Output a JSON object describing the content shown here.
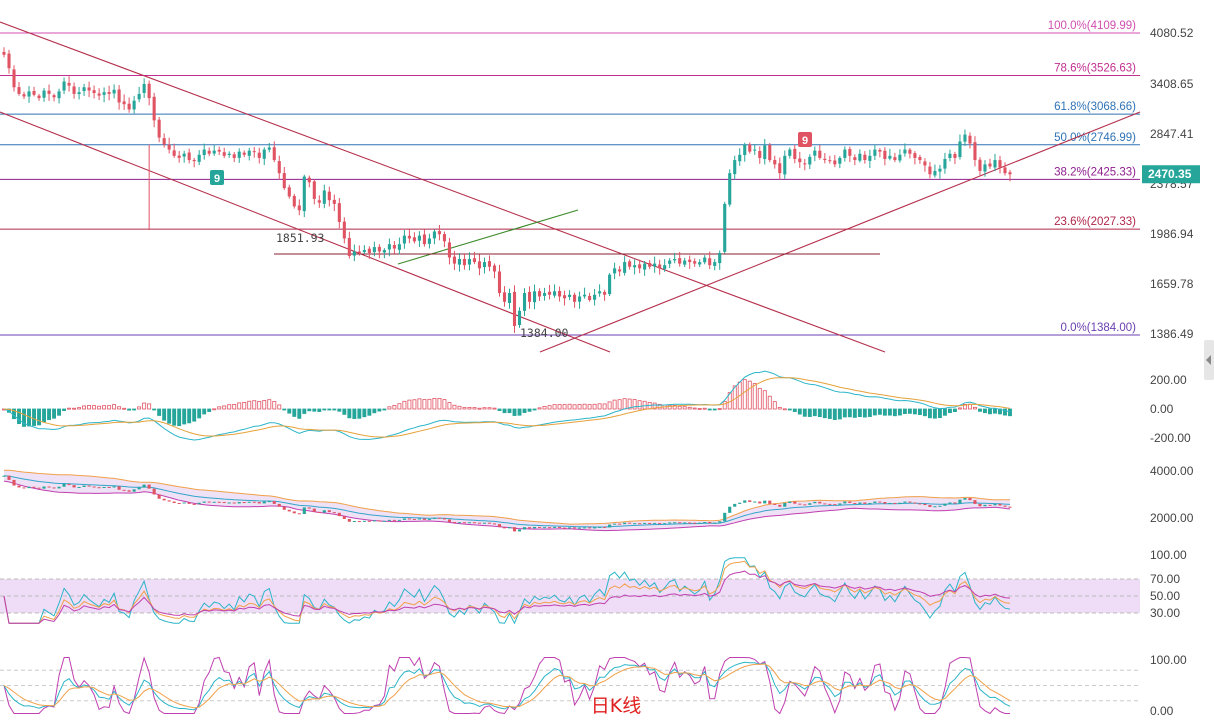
{
  "chart_data": {
    "type": "candlestick",
    "title": "日K线",
    "price_axis_ticks": [
      "4080.52",
      "3408.65",
      "2847.41",
      "2378.57",
      "1986.94",
      "1659.78",
      "1386.49"
    ],
    "current_price": "2470.35",
    "price_ylim_log": [
      1290,
      4600
    ],
    "fibonacci": [
      {
        "label": "100.0%(4109.99)",
        "price": 4109.99,
        "color": "#d04fb0"
      },
      {
        "label": "78.6%(3526.63)",
        "price": 3526.63,
        "color": "#c22f8f"
      },
      {
        "label": "61.8%(3068.66)",
        "price": 3068.66,
        "color": "#2f73b5"
      },
      {
        "label": "50.0%(2746.99)",
        "price": 2746.99,
        "color": "#2f73b5"
      },
      {
        "label": "38.2%(2425.33)",
        "price": 2425.33,
        "color": "#8f1f8f"
      },
      {
        "label": "23.6%(2027.33)",
        "price": 2027.33,
        "color": "#b0274a"
      },
      {
        "label": "0.0%(1384.00)",
        "price": 1384.0,
        "color": "#6a3fb0"
      }
    ],
    "annotations": [
      {
        "text": "1851.93",
        "price": 1851.93
      },
      {
        "text": "1384.00",
        "price": 1384.0
      }
    ],
    "td_markers": [
      {
        "text": "9",
        "color": "#26a69a"
      },
      {
        "text": "9",
        "color": "#e05363"
      }
    ],
    "panels": [
      {
        "name": "macd",
        "ticks": [
          "200.00",
          "0.00",
          "-200.00"
        ]
      },
      {
        "name": "boll",
        "ticks": [
          "4000.00",
          "2000.00"
        ]
      },
      {
        "name": "rsi",
        "ticks": [
          "100.00",
          "70.00",
          "50.00",
          "30.00"
        ]
      },
      {
        "name": "kdj",
        "ticks": [
          "100.00",
          "0.00"
        ]
      }
    ],
    "closes": [
      3800,
      3620,
      3380,
      3300,
      3270,
      3330,
      3290,
      3250,
      3340,
      3300,
      3260,
      3330,
      3450,
      3400,
      3300,
      3320,
      3380,
      3340,
      3310,
      3280,
      3320,
      3300,
      3350,
      3200,
      3180,
      3120,
      3220,
      3300,
      3420,
      3250,
      3000,
      2820,
      2750,
      2700,
      2640,
      2620,
      2660,
      2600,
      2590,
      2650,
      2700,
      2660,
      2690,
      2680,
      2640,
      2660,
      2620,
      2680,
      2650,
      2690,
      2680,
      2620,
      2700,
      2720,
      2600,
      2480,
      2350,
      2280,
      2200,
      2170,
      2450,
      2400,
      2260,
      2230,
      2330,
      2250,
      2220,
      2080,
      1960,
      1840,
      1870,
      1860,
      1880,
      1860,
      1900,
      1870,
      1880,
      1920,
      1890,
      1920,
      1980,
      1960,
      1940,
      1980,
      1920,
      1960,
      2010,
      1990,
      1940,
      1830,
      1790,
      1820,
      1780,
      1820,
      1800,
      1760,
      1800,
      1770,
      1740,
      1610,
      1560,
      1610,
      1430,
      1510,
      1610,
      1560,
      1620,
      1590,
      1610,
      1600,
      1620,
      1590,
      1580,
      1600,
      1560,
      1590,
      1600,
      1570,
      1600,
      1620,
      1600,
      1720,
      1760,
      1740,
      1800,
      1770,
      1780,
      1760,
      1790,
      1770,
      1790,
      1760,
      1780,
      1810,
      1820,
      1790,
      1810,
      1800,
      1790,
      1800,
      1830,
      1780,
      1800,
      1860,
      2220,
      2480,
      2600,
      2650,
      2750,
      2680,
      2700,
      2620,
      2740,
      2600,
      2560,
      2480,
      2640,
      2700,
      2610,
      2580,
      2560,
      2630,
      2690,
      2620,
      2600,
      2590,
      2560,
      2620,
      2700,
      2640,
      2600,
      2660,
      2600,
      2640,
      2700,
      2680,
      2610,
      2640,
      2600,
      2650,
      2700,
      2660,
      2620,
      2600,
      2550,
      2470,
      2500,
      2520,
      2610,
      2660,
      2620,
      2780,
      2850,
      2760,
      2600,
      2500,
      2560,
      2540,
      2600,
      2530,
      2480,
      2470
    ]
  }
}
